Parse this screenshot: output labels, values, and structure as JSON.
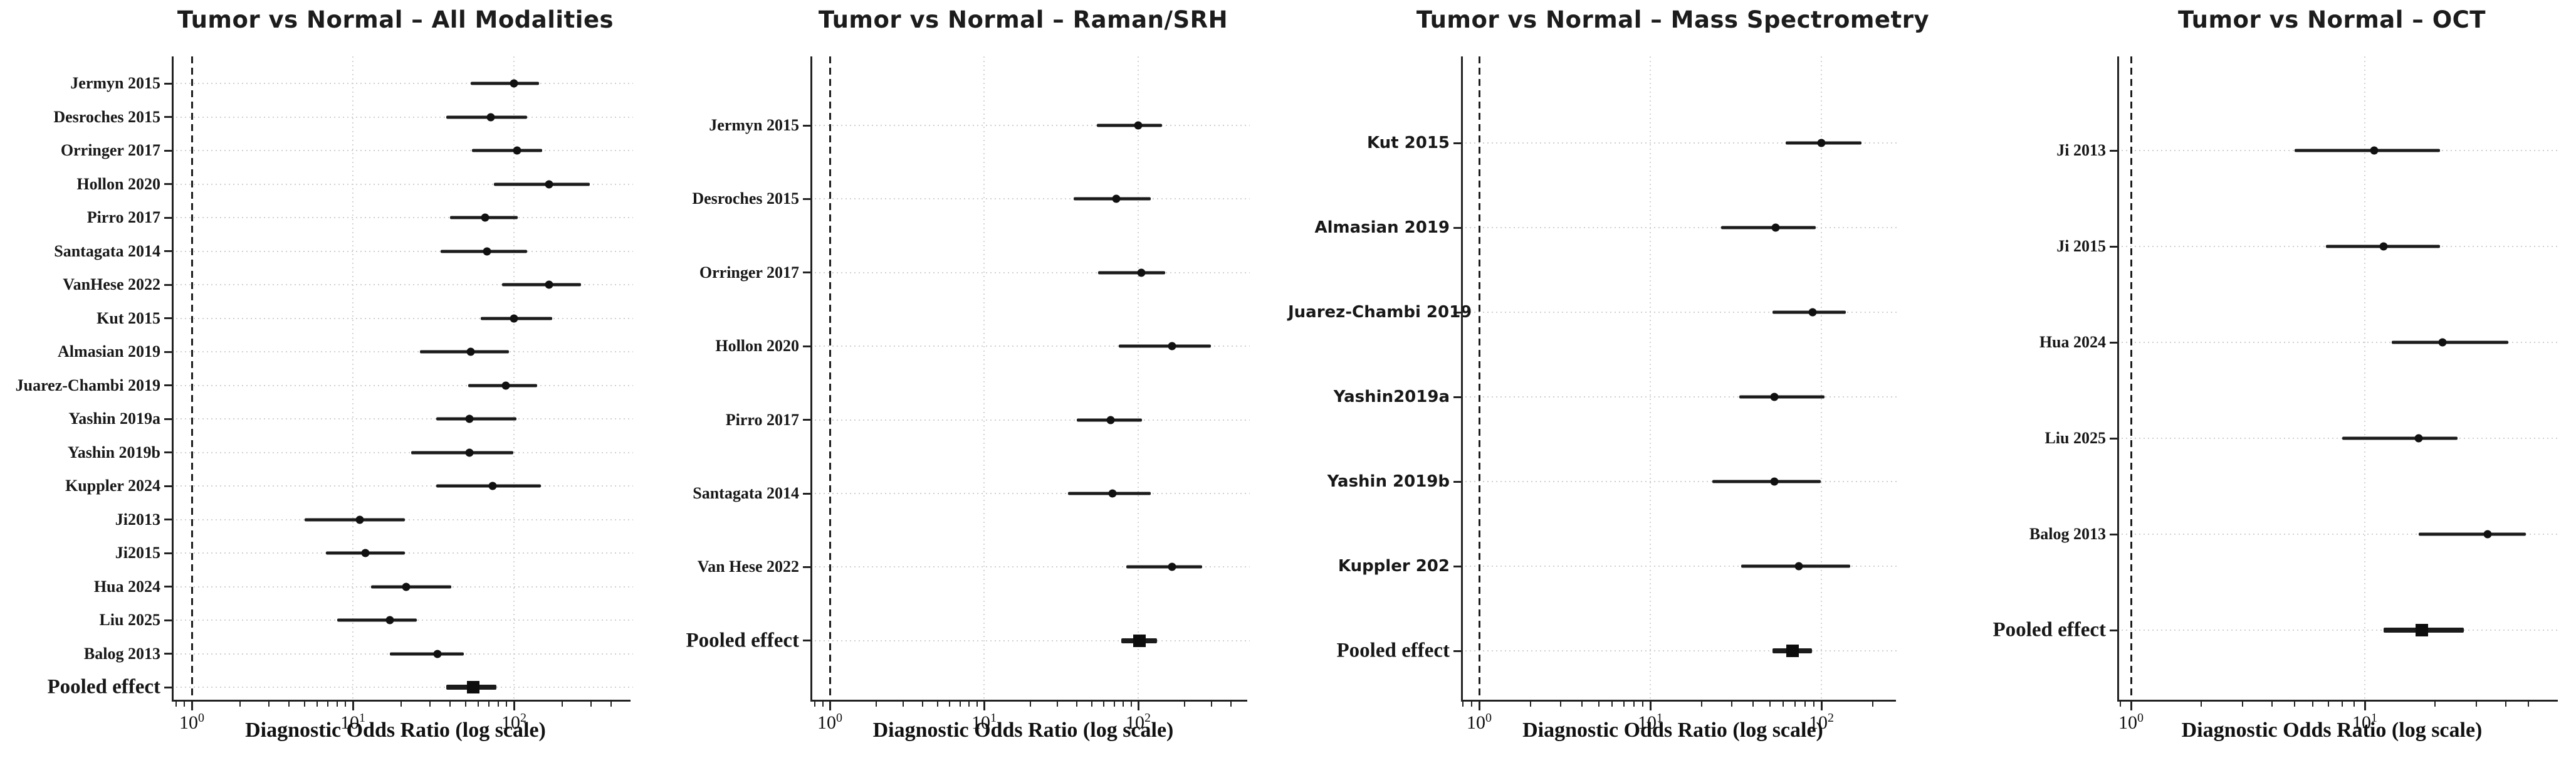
{
  "figure": {
    "background_color": "#ffffff",
    "ink_color": "#1c1c1c",
    "grid_color": "#cfcfcf",
    "reference_line_value": "1.0",
    "x_axis_label": "Diagnostic Odds Ratio (log scale)"
  },
  "chart_data": [
    {
      "type": "scatter",
      "subtype": "forest-plot",
      "title": "Tumor vs Normal – All Modalities",
      "xlabel": "Diagnostic Odds Ratio (log scale)",
      "xscale": "log",
      "xlim": [
        0.75,
        450
      ],
      "reference_line": 1,
      "grid": true,
      "label_font": "serif",
      "xticks": [
        {
          "display": "10⁰",
          "base": "10",
          "exp": "0",
          "value": 1
        },
        {
          "display": "10¹",
          "base": "10",
          "exp": "1",
          "value": 10
        },
        {
          "display": "10²",
          "base": "10",
          "exp": "2",
          "value": 100
        }
      ],
      "studies": [
        {
          "label": "Jermyn 2015",
          "dor": 100,
          "ci_low": 54,
          "ci_high": 143,
          "pooled": false
        },
        {
          "label": "Desroches 2015",
          "dor": 72,
          "ci_low": 38,
          "ci_high": 121,
          "pooled": false
        },
        {
          "label": "Orringer 2017",
          "dor": 105,
          "ci_low": 55,
          "ci_high": 149,
          "pooled": false
        },
        {
          "label": "Hollon 2020",
          "dor": 165,
          "ci_low": 75,
          "ci_high": 295,
          "pooled": false
        },
        {
          "label": "Pirro 2017",
          "dor": 66,
          "ci_low": 40,
          "ci_high": 106,
          "pooled": false
        },
        {
          "label": "Santagata 2014",
          "dor": 68,
          "ci_low": 35,
          "ci_high": 121,
          "pooled": false
        },
        {
          "label": "VanHese 2022",
          "dor": 165,
          "ci_low": 84,
          "ci_high": 261,
          "pooled": false
        },
        {
          "label": "Kut 2015",
          "dor": 100,
          "ci_low": 62,
          "ci_high": 172,
          "pooled": false
        },
        {
          "label": "Almasian 2019",
          "dor": 54,
          "ci_low": 26,
          "ci_high": 93,
          "pooled": false
        },
        {
          "label": "Juarez-Chambi 2019",
          "dor": 89,
          "ci_low": 52,
          "ci_high": 139,
          "pooled": false
        },
        {
          "label": "Yashin 2019a",
          "dor": 53,
          "ci_low": 33,
          "ci_high": 104,
          "pooled": false
        },
        {
          "label": "Yashin 2019b",
          "dor": 53,
          "ci_low": 23,
          "ci_high": 99,
          "pooled": false
        },
        {
          "label": "Kuppler 2024",
          "dor": 74,
          "ci_low": 33,
          "ci_high": 147,
          "pooled": false
        },
        {
          "label": "Ji2013",
          "dor": 11,
          "ci_low": 5,
          "ci_high": 21,
          "pooled": false
        },
        {
          "label": "Ji2015",
          "dor": 12,
          "ci_low": 6.8,
          "ci_high": 21,
          "pooled": false
        },
        {
          "label": "Hua 2024",
          "dor": 21.5,
          "ci_low": 13,
          "ci_high": 41,
          "pooled": false
        },
        {
          "label": "Liu 2025",
          "dor": 17,
          "ci_low": 8,
          "ci_high": 25,
          "pooled": false
        },
        {
          "label": "Balog 2013",
          "dor": 33.5,
          "ci_low": 17,
          "ci_high": 49,
          "pooled": false
        },
        {
          "label": "Pooled effect",
          "dor": 56,
          "ci_low": 38,
          "ci_high": 78,
          "pooled": true
        }
      ]
    },
    {
      "type": "scatter",
      "subtype": "forest-plot",
      "title": "Tumor vs Normal – Raman/SRH",
      "xlabel": "Diagnostic Odds Ratio (log scale)",
      "xscale": "log",
      "xlim": [
        0.75,
        430
      ],
      "reference_line": 1,
      "grid": true,
      "label_font": "serif",
      "xticks": [
        {
          "display": "10⁰",
          "base": "10",
          "exp": "0",
          "value": 1
        },
        {
          "display": "10¹",
          "base": "10",
          "exp": "1",
          "value": 10
        },
        {
          "display": "10²",
          "base": "10",
          "exp": "2",
          "value": 100
        }
      ],
      "studies": [
        {
          "label": "Jermyn 2015",
          "dor": 100,
          "ci_low": 54,
          "ci_high": 143,
          "pooled": false
        },
        {
          "label": "Desroches 2015",
          "dor": 72,
          "ci_low": 38,
          "ci_high": 121,
          "pooled": false
        },
        {
          "label": "Orringer 2017",
          "dor": 105,
          "ci_low": 55,
          "ci_high": 149,
          "pooled": false
        },
        {
          "label": "Hollon 2020",
          "dor": 165,
          "ci_low": 75,
          "ci_high": 295,
          "pooled": false
        },
        {
          "label": "Pirro 2017",
          "dor": 66,
          "ci_low": 40,
          "ci_high": 106,
          "pooled": false
        },
        {
          "label": "Santagata 2014",
          "dor": 68,
          "ci_low": 35,
          "ci_high": 121,
          "pooled": false
        },
        {
          "label": "Van Hese 2022",
          "dor": 165,
          "ci_low": 84,
          "ci_high": 261,
          "pooled": false
        },
        {
          "label": "Pooled effect",
          "dor": 102,
          "ci_low": 78,
          "ci_high": 133,
          "pooled": true
        }
      ]
    },
    {
      "type": "scatter",
      "subtype": "forest-plot",
      "title": "Tumor vs Normal – Mass Spectrometry",
      "xlabel": "Diagnostic Odds Ratio (log scale)",
      "xscale": "log",
      "xlim": [
        0.78,
        235
      ],
      "reference_line": 1,
      "grid": true,
      "label_font": "sans",
      "xticks": [
        {
          "display": "10⁰",
          "base": "10",
          "exp": "0",
          "value": 1
        },
        {
          "display": "10¹",
          "base": "10",
          "exp": "1",
          "value": 10
        },
        {
          "display": "10²",
          "base": "10",
          "exp": "2",
          "value": 100
        }
      ],
      "studies": [
        {
          "label": "Kut 2015",
          "dor": 100,
          "ci_low": 62,
          "ci_high": 172,
          "pooled": false
        },
        {
          "label": "Almasian 2019",
          "dor": 54,
          "ci_low": 26,
          "ci_high": 93,
          "pooled": false
        },
        {
          "label": "Juarez-Chambi 2019",
          "dor": 89,
          "ci_low": 52,
          "ci_high": 139,
          "pooled": false
        },
        {
          "label": "Yashin2019a",
          "dor": 53,
          "ci_low": 33,
          "ci_high": 104,
          "pooled": false
        },
        {
          "label": "Yashin 2019b",
          "dor": 53,
          "ci_low": 23,
          "ci_high": 99,
          "pooled": false
        },
        {
          "label": "Kuppler 202",
          "dor": 74,
          "ci_low": 34,
          "ci_high": 148,
          "pooled": false
        },
        {
          "label": "Pooled effect",
          "dor": 68,
          "ci_low": 52,
          "ci_high": 88,
          "pooled": true
        }
      ]
    },
    {
      "type": "scatter",
      "subtype": "forest-plot",
      "title": "Tumor vs Normal – OCT",
      "xlabel": "Diagnostic Odds Ratio (log scale)",
      "xscale": "log",
      "xlim": [
        0.87,
        60
      ],
      "reference_line": 1,
      "grid": true,
      "label_font": "serif",
      "xticks": [
        {
          "display": "10⁰",
          "base": "10",
          "exp": "0",
          "value": 1
        },
        {
          "display": "10¹",
          "base": "10",
          "exp": "1",
          "value": 10
        }
      ],
      "studies": [
        {
          "label": "Ji 2013",
          "dor": 11,
          "ci_low": 5,
          "ci_high": 21,
          "pooled": false
        },
        {
          "label": "Ji 2015",
          "dor": 12,
          "ci_low": 6.8,
          "ci_high": 21,
          "pooled": false
        },
        {
          "label": "Hua 2024",
          "dor": 21.5,
          "ci_low": 13,
          "ci_high": 41,
          "pooled": false
        },
        {
          "label": "Liu 2025",
          "dor": 17,
          "ci_low": 8,
          "ci_high": 25,
          "pooled": false
        },
        {
          "label": "Balog 2013",
          "dor": 33.5,
          "ci_low": 17,
          "ci_high": 49,
          "pooled": false
        },
        {
          "label": "Pooled effect",
          "dor": 17.5,
          "ci_low": 12,
          "ci_high": 26.5,
          "pooled": true
        }
      ]
    }
  ]
}
